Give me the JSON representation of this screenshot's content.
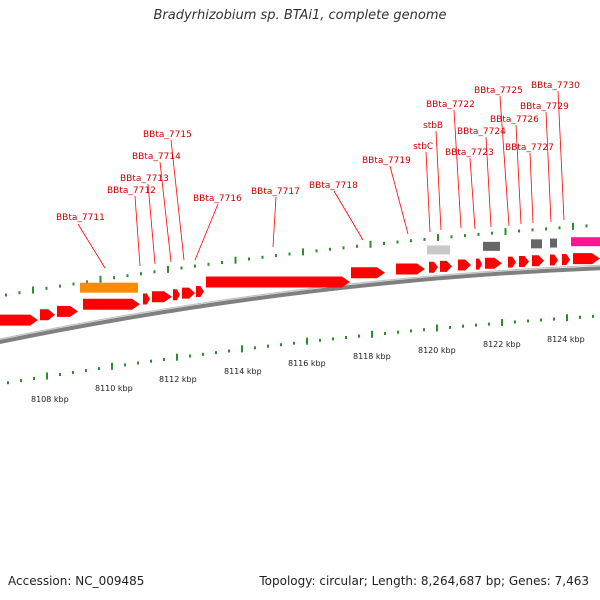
{
  "title": "Bradyrhizobium sp. BTAi1, complete genome",
  "footer": {
    "accession": "Accession: NC_009485",
    "stats": "Topology: circular; Length: 8,264,687 bp; Genes: 7,463"
  },
  "ruler_labels": [
    "8108 kbp",
    "8110 kbp",
    "8112 kbp",
    "8114 kbp",
    "8116 kbp",
    "8118 kbp",
    "8120 kbp",
    "8122 kbp",
    "8124 kbp"
  ],
  "colors": {
    "gene": "#ff0000",
    "label": "#cc0000",
    "tick": "#2e8b2e",
    "backbone": "#808080",
    "orange_feature": "#ff8c00",
    "light_gray_feature": "#c8c8c8",
    "dark_gray_feature": "#666666",
    "pink_feature": "#ff1493"
  },
  "gene_labels": [
    "BBta_7711",
    "BBta_7712",
    "BBta_7713",
    "BBta_7714",
    "BBta_7715",
    "BBta_7716",
    "BBta_7717",
    "BBta_7718",
    "BBta_7719",
    "stbC",
    "stbB",
    "BBta_7722",
    "BBta_7723",
    "BBta_7724",
    "BBta_7725",
    "BBta_7726",
    "BBta_7727",
    "BBta_7729",
    "BBta_7730"
  ]
}
